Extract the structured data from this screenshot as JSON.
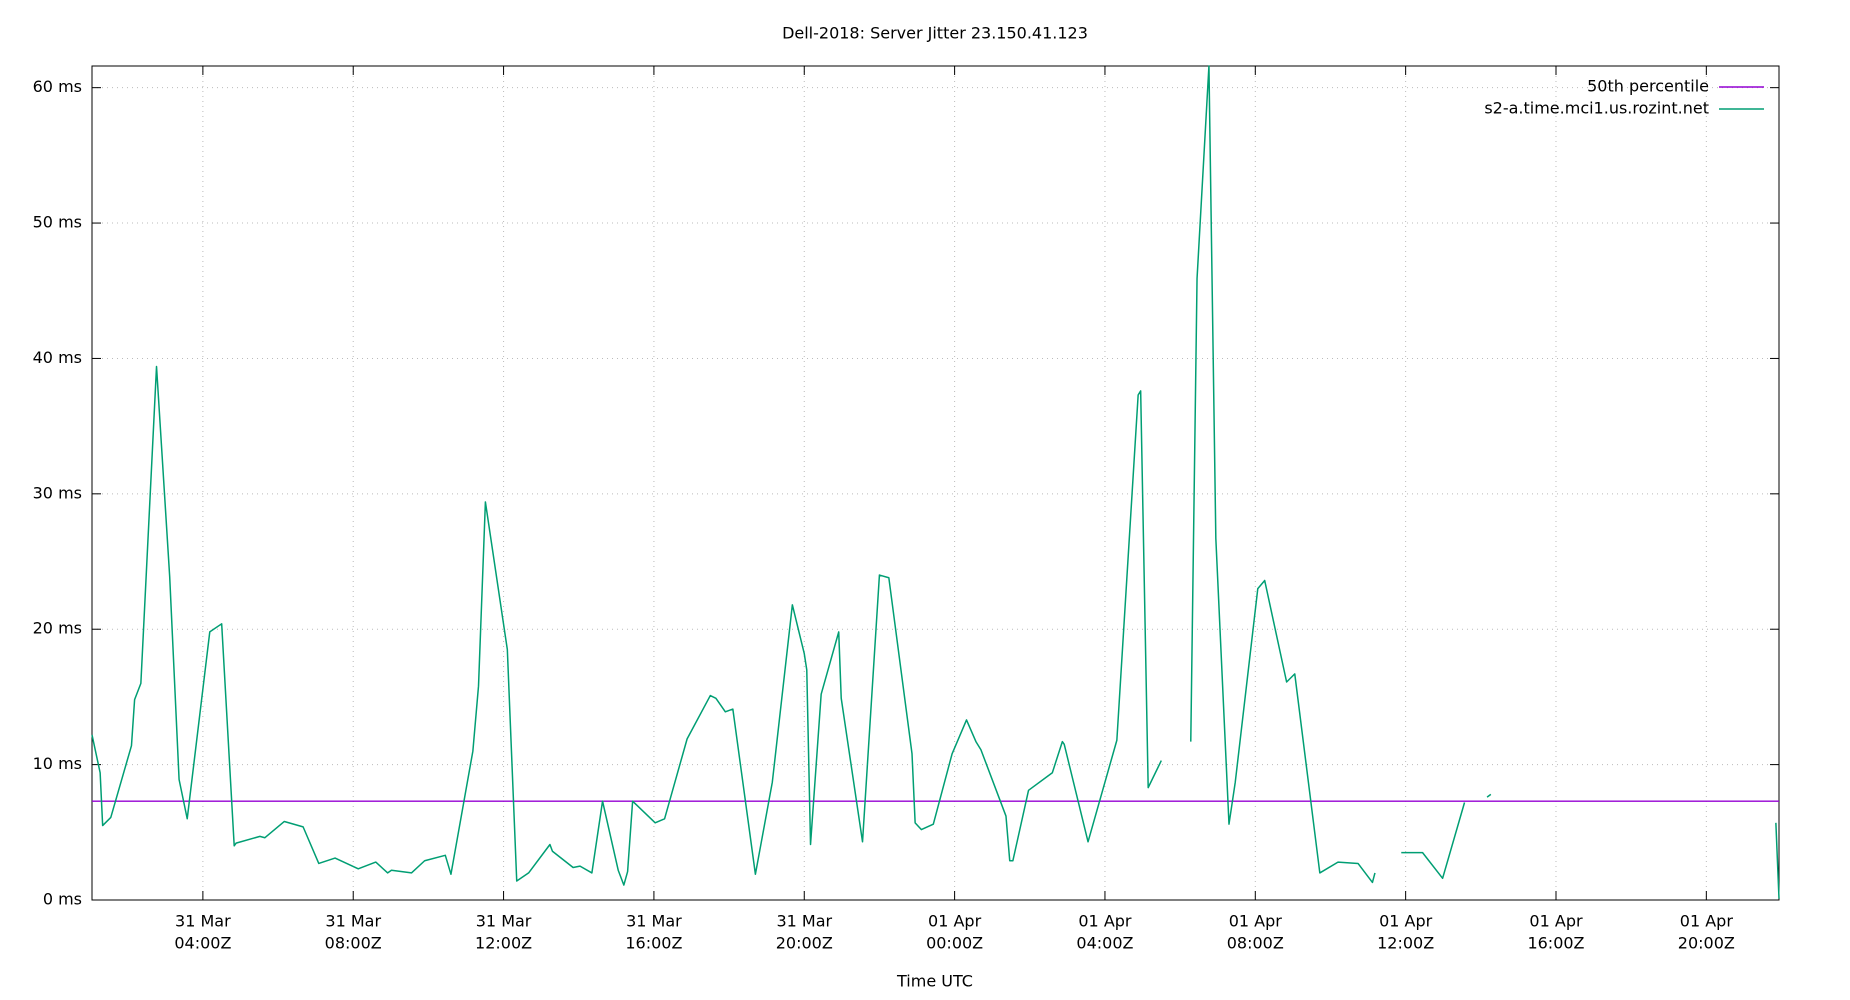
{
  "chart_data": {
    "type": "line",
    "title": "Dell-2018: Server Jitter 23.150.41.123",
    "x_label": "Time UTC",
    "xlim": [
      "31 Mar 01:03Z",
      "01 Apr 21:56Z"
    ],
    "xticks": [
      {
        "value": "31 Mar 04:00Z",
        "label": [
          "31 Mar",
          "04:00Z"
        ]
      },
      {
        "value": "31 Mar 08:00Z",
        "label": [
          "31 Mar",
          "08:00Z"
        ]
      },
      {
        "value": "31 Mar 12:00Z",
        "label": [
          "31 Mar",
          "12:00Z"
        ]
      },
      {
        "value": "31 Mar 16:00Z",
        "label": [
          "31 Mar",
          "16:00Z"
        ]
      },
      {
        "value": "31 Mar 20:00Z",
        "label": [
          "31 Mar",
          "20:00Z"
        ]
      },
      {
        "value": "01 Apr 00:00Z",
        "label": [
          "01 Apr",
          "00:00Z"
        ]
      },
      {
        "value": "01 Apr 04:00Z",
        "label": [
          "01 Apr",
          "04:00Z"
        ]
      },
      {
        "value": "01 Apr 08:00Z",
        "label": [
          "01 Apr",
          "08:00Z"
        ]
      },
      {
        "value": "01 Apr 12:00Z",
        "label": [
          "01 Apr",
          "12:00Z"
        ]
      },
      {
        "value": "01 Apr 16:00Z",
        "label": [
          "01 Apr",
          "16:00Z"
        ]
      },
      {
        "value": "01 Apr 20:00Z",
        "label": [
          "01 Apr",
          "20:00Z"
        ]
      }
    ],
    "ylim": [
      0,
      61.6
    ],
    "yticks": [
      {
        "value": 0,
        "label": "0 ms"
      },
      {
        "value": 10,
        "label": "10 ms"
      },
      {
        "value": 20,
        "label": "20 ms"
      },
      {
        "value": 30,
        "label": "30 ms"
      },
      {
        "value": 40,
        "label": "40 ms"
      },
      {
        "value": 50,
        "label": "50 ms"
      },
      {
        "value": 60,
        "label": "60 ms"
      }
    ],
    "grid": true,
    "legend": "top-right",
    "reference_lines": [
      {
        "name": "50th percentile",
        "color": "#9400d3",
        "value": 7.3
      }
    ],
    "series": [
      {
        "name": "s2-a.time.mci1.us.rozint.net",
        "color": "#009e73",
        "x": [
          "31 Mar 01:03Z",
          "31 Mar 01:16Z",
          "31 Mar 01:20Z",
          "31 Mar 01:33Z",
          "31 Mar 02:06Z",
          "31 Mar 02:11Z",
          "31 Mar 02:21Z",
          "31 Mar 02:46Z",
          "31 Mar 03:07Z",
          "31 Mar 03:22Z",
          "31 Mar 03:35Z",
          "31 Mar 04:11Z",
          "31 Mar 04:30Z",
          "31 Mar 04:50Z",
          "31 Mar 04:53Z",
          "31 Mar 05:31Z",
          "31 Mar 05:39Z",
          "31 Mar 06:10Z",
          "31 Mar 06:40Z",
          "31 Mar 07:05Z",
          "31 Mar 07:31Z",
          "31 Mar 08:08Z",
          "31 Mar 08:36Z",
          "31 Mar 08:55Z",
          "31 Mar 09:01Z",
          "31 Mar 09:33Z",
          "31 Mar 09:54Z",
          "31 Mar 10:27Z",
          "31 Mar 10:36Z",
          "31 Mar 11:11Z",
          "31 Mar 11:20Z",
          "31 Mar 11:31Z",
          "31 Mar 12:06Z",
          "31 Mar 12:21Z",
          "31 Mar 12:40Z",
          "31 Mar 13:14Z",
          "31 Mar 13:18Z",
          "31 Mar 13:51Z",
          "31 Mar 14:02Z",
          "31 Mar 14:21Z",
          "31 Mar 14:38Z",
          "31 Mar 15:03Z",
          "31 Mar 15:12Z",
          "31 Mar 15:18Z",
          "31 Mar 15:26Z",
          "31 Mar 16:02Z",
          "31 Mar 16:17Z",
          "31 Mar 16:53Z",
          "31 Mar 17:30Z",
          "31 Mar 17:39Z",
          "31 Mar 17:54Z",
          "31 Mar 18:06Z",
          "31 Mar 18:42Z",
          "31 Mar 19:09Z",
          "31 Mar 19:41Z",
          "31 Mar 20:00Z",
          "31 Mar 20:04Z",
          "31 Mar 20:10Z",
          "31 Mar 20:27Z",
          "31 Mar 20:55Z",
          "31 Mar 20:59Z",
          "31 Mar 21:33Z",
          "31 Mar 22:00Z",
          "31 Mar 22:15Z",
          "31 Mar 22:52Z",
          "31 Mar 22:57Z",
          "31 Mar 23:07Z",
          "31 Mar 23:26Z",
          "31 Mar 23:56Z",
          "01 Apr 00:19Z",
          "01 Apr 00:34Z",
          "01 Apr 00:42Z",
          "01 Apr 01:22Z",
          "01 Apr 01:28Z",
          "01 Apr 01:33Z",
          "01 Apr 01:58Z",
          "01 Apr 02:36Z",
          "01 Apr 02:52Z",
          "01 Apr 02:55Z",
          "01 Apr 03:33Z",
          "01 Apr 04:19Z",
          "01 Apr 04:53Z",
          "01 Apr 04:57Z",
          "01 Apr 05:09Z",
          "01 Apr 05:30Z",
          null,
          "01 Apr 06:17Z",
          "01 Apr 06:27Z",
          "01 Apr 06:46Z",
          "01 Apr 06:57Z",
          "01 Apr 07:18Z",
          "01 Apr 07:28Z",
          "01 Apr 08:04Z",
          "01 Apr 08:15Z",
          "01 Apr 08:50Z",
          "01 Apr 09:03Z",
          "01 Apr 09:43Z",
          "01 Apr 10:12Z",
          "01 Apr 10:44Z",
          "01 Apr 11:07Z",
          "01 Apr 11:11Z",
          null,
          "01 Apr 11:53Z",
          "01 Apr 12:27Z",
          "01 Apr 12:59Z",
          "01 Apr 13:34Z",
          null,
          "01 Apr 14:10Z",
          "01 Apr 14:16Z",
          null,
          "01 Apr 21:51Z",
          "01 Apr 21:56Z"
        ],
        "values": [
          12.2,
          9.4,
          5.5,
          6.1,
          11.4,
          14.8,
          16.0,
          39.4,
          23.9,
          8.9,
          6.0,
          19.8,
          20.4,
          4.0,
          4.2,
          4.7,
          4.6,
          5.8,
          5.4,
          2.7,
          3.1,
          2.3,
          2.8,
          2.0,
          2.2,
          2.0,
          2.9,
          3.3,
          1.9,
          11.0,
          15.8,
          29.4,
          18.5,
          1.4,
          2.0,
          4.1,
          3.6,
          2.4,
          2.5,
          2.0,
          7.3,
          2.2,
          1.1,
          2.1,
          7.3,
          5.7,
          6.0,
          11.9,
          15.1,
          14.9,
          13.9,
          14.1,
          1.9,
          8.7,
          21.8,
          18.2,
          17.0,
          4.1,
          15.2,
          19.8,
          14.9,
          4.3,
          24.0,
          23.8,
          10.8,
          5.7,
          5.2,
          5.6,
          10.8,
          13.3,
          11.7,
          11.1,
          6.2,
          2.9,
          2.9,
          8.1,
          9.4,
          11.7,
          11.5,
          4.3,
          11.8,
          37.3,
          37.6,
          8.3,
          10.3,
          null,
          11.7,
          45.9,
          61.6,
          26.7,
          5.6,
          8.7,
          23.0,
          23.6,
          16.1,
          16.7,
          2.0,
          2.8,
          2.7,
          1.3,
          2.0,
          null,
          3.5,
          3.5,
          1.6,
          7.2,
          null,
          7.6,
          7.8,
          null,
          5.7,
          0.1
        ]
      }
    ]
  }
}
